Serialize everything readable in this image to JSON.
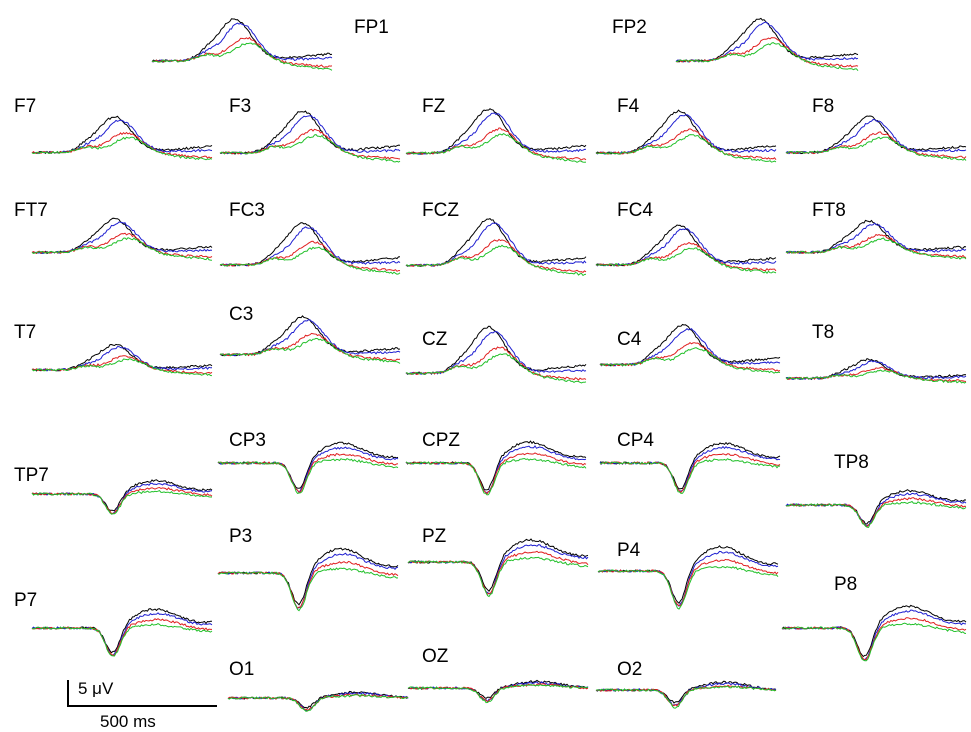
{
  "chart_data": {
    "type": "line",
    "title": "",
    "series": [
      {
        "color": "#000000"
      },
      {
        "color": "#1f1fd0"
      },
      {
        "color": "#e02020"
      },
      {
        "color": "#22c02a"
      }
    ],
    "channels": [
      {
        "name": "FP1",
        "family": "frontal",
        "amp": 1.0
      },
      {
        "name": "FP2",
        "family": "frontal",
        "amp": 1.0
      },
      {
        "name": "F7",
        "family": "frontal",
        "amp": 0.85
      },
      {
        "name": "F3",
        "family": "frontal",
        "amp": 1.0
      },
      {
        "name": "FZ",
        "family": "frontal",
        "amp": 1.05
      },
      {
        "name": "F4",
        "family": "frontal",
        "amp": 1.0
      },
      {
        "name": "F8",
        "family": "frontal",
        "amp": 0.85
      },
      {
        "name": "FT7",
        "family": "frontal",
        "amp": 0.8
      },
      {
        "name": "FC3",
        "family": "frontal",
        "amp": 1.0
      },
      {
        "name": "FCZ",
        "family": "frontal",
        "amp": 1.1
      },
      {
        "name": "FC4",
        "family": "frontal",
        "amp": 0.95
      },
      {
        "name": "FT8",
        "family": "frontal",
        "amp": 0.75
      },
      {
        "name": "T7",
        "family": "frontal",
        "amp": 0.6
      },
      {
        "name": "C3",
        "family": "frontal",
        "amp": 0.9
      },
      {
        "name": "CZ",
        "family": "frontal",
        "amp": 1.1
      },
      {
        "name": "C4",
        "family": "frontal",
        "amp": 0.95
      },
      {
        "name": "T8",
        "family": "frontal",
        "amp": 0.45
      },
      {
        "name": "TP7",
        "family": "parietal",
        "amp": 0.6
      },
      {
        "name": "CP3",
        "family": "parietal",
        "amp": 0.9
      },
      {
        "name": "CPZ",
        "family": "parietal",
        "amp": 0.95
      },
      {
        "name": "CP4",
        "family": "parietal",
        "amp": 0.9
      },
      {
        "name": "TP8",
        "family": "parietal",
        "amp": 0.65
      },
      {
        "name": "P3",
        "family": "parietal",
        "amp": 1.1
      },
      {
        "name": "PZ",
        "family": "parietal",
        "amp": 1.0
      },
      {
        "name": "P4",
        "family": "parietal",
        "amp": 1.1
      },
      {
        "name": "P8",
        "family": "parietal",
        "amp": 1.0
      },
      {
        "name": "P7",
        "family": "parietal",
        "amp": 0.85
      },
      {
        "name": "O1",
        "family": "occipital",
        "amp": 0.6
      },
      {
        "name": "OZ",
        "family": "occipital",
        "amp": 0.65
      },
      {
        "name": "O2",
        "family": "occipital",
        "amp": 0.8
      }
    ],
    "scale_bar": {
      "amplitude": "5 μV",
      "time": "500 ms"
    }
  }
}
